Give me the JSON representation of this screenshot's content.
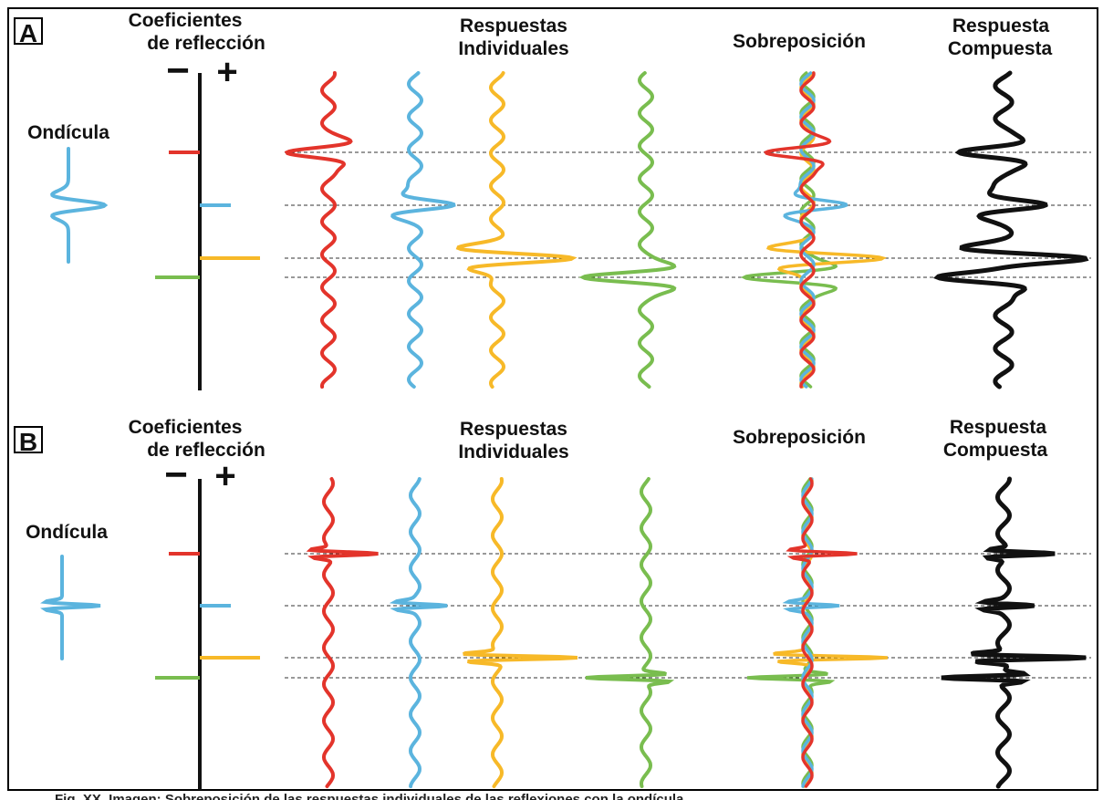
{
  "colors": {
    "red": "#e3342b",
    "blue": "#5bb4de",
    "yellow": "#f7b928",
    "green": "#79bd4f",
    "black": "#111111"
  },
  "panels": [
    {
      "letter": "A",
      "wavelet_label": "Ondícula",
      "coef_title": [
        "Coeficientes",
        "de reflección"
      ],
      "minus": "−",
      "plus": "+",
      "individual_title": [
        "Respuestas",
        "Individuales"
      ],
      "overlay_title": "Sobreposición",
      "composite_title": [
        "Respuesta",
        "Compuesta"
      ],
      "wavelet_type": "broad"
    },
    {
      "letter": "B",
      "wavelet_label": "Ondícula",
      "coef_title": [
        "Coeficientes",
        "de reflección"
      ],
      "minus": "−",
      "plus": "+",
      "individual_title": [
        "Respuestas",
        "Individuales"
      ],
      "overlay_title": "Sobreposición",
      "composite_title": [
        "Respuesta",
        "Compuesta"
      ],
      "wavelet_type": "sharp"
    }
  ],
  "caption": "Fig. XX. Imagen: Sobreposición de las respuestas individuales de las reflexiones con la ondícula"
}
